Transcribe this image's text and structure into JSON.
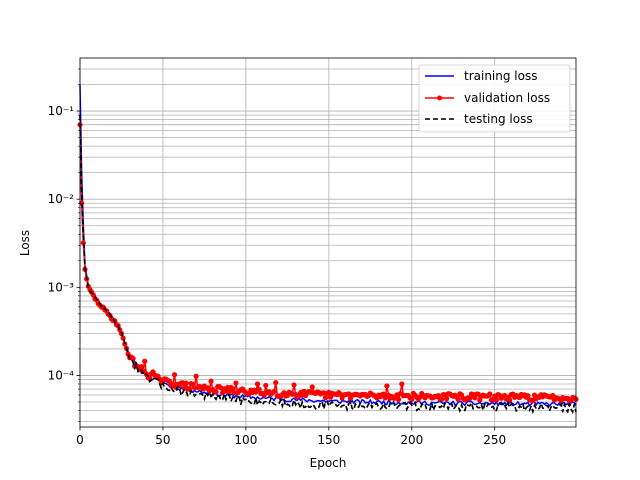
{
  "chart_data": {
    "type": "line",
    "title": "",
    "xlabel": "Epoch",
    "ylabel": "Loss",
    "xlim": [
      0,
      299
    ],
    "ylim": [
      2.6e-05,
      0.4
    ],
    "yscale": "log",
    "grid": true,
    "grid_minor_y": true,
    "legend_position": "upper-right",
    "x_ticks": [
      0,
      50,
      100,
      150,
      200,
      250
    ],
    "x_tick_labels": [
      "0",
      "50",
      "100",
      "150",
      "200",
      "250"
    ],
    "y_ticks": [
      0.0001,
      0.001,
      0.01,
      0.1
    ],
    "y_tick_labels": [
      "10⁻⁴",
      "10⁻³",
      "10⁻²",
      "10⁻¹"
    ],
    "series": [
      {
        "name": "training loss",
        "color": "#0000ff",
        "style": "solid",
        "marker": "none",
        "anchors": [
          [
            0,
            0.2
          ],
          [
            1,
            0.02
          ],
          [
            2,
            0.005
          ],
          [
            3,
            0.0018
          ],
          [
            5,
            0.00105
          ],
          [
            10,
            0.00075
          ],
          [
            15,
            0.00058
          ],
          [
            20,
            0.00045
          ],
          [
            23,
            0.00037
          ],
          [
            27,
            0.00024
          ],
          [
            30,
            0.00017
          ],
          [
            35,
            0.00012
          ],
          [
            40,
            0.0001
          ],
          [
            50,
            8.2e-05
          ],
          [
            60,
            7.2e-05
          ],
          [
            80,
            6.2e-05
          ],
          [
            100,
            5.7e-05
          ],
          [
            120,
            5.4e-05
          ],
          [
            150,
            5.1e-05
          ],
          [
            200,
            4.9e-05
          ],
          [
            250,
            4.8e-05
          ],
          [
            299,
            4.7e-05
          ]
        ],
        "noise": 0.04,
        "seed": 11
      },
      {
        "name": "validation loss",
        "color": "#ff0000",
        "style": "solid",
        "marker": "dot",
        "anchors": [
          [
            0,
            0.07
          ],
          [
            1,
            0.009
          ],
          [
            2,
            0.0032
          ],
          [
            3,
            0.0016
          ],
          [
            5,
            0.001
          ],
          [
            10,
            0.0007
          ],
          [
            15,
            0.00055
          ],
          [
            20,
            0.00043
          ],
          [
            23,
            0.00037
          ],
          [
            27,
            0.00023
          ],
          [
            30,
            0.00016
          ],
          [
            35,
            0.000125
          ],
          [
            40,
            0.000105
          ],
          [
            50,
            8.6e-05
          ],
          [
            60,
            7.8e-05
          ],
          [
            80,
            7e-05
          ],
          [
            100,
            6.6e-05
          ],
          [
            120,
            6.3e-05
          ],
          [
            150,
            6e-05
          ],
          [
            200,
            5.8e-05
          ],
          [
            250,
            5.7e-05
          ],
          [
            299,
            5.6e-05
          ]
        ],
        "noise": 0.06,
        "seed": 29,
        "spikes": [
          [
            39,
            0.000145
          ],
          [
            44,
            0.00011
          ],
          [
            57,
            0.000102
          ],
          [
            70,
            9.8e-05
          ],
          [
            79,
            8.6e-05
          ],
          [
            94,
            8.2e-05
          ],
          [
            107,
            8e-05
          ],
          [
            112,
            7.7e-05
          ],
          [
            118,
            8.3e-05
          ],
          [
            129,
            7.8e-05
          ],
          [
            140,
            7.4e-05
          ],
          [
            185,
            7.6e-05
          ],
          [
            194,
            8e-05
          ]
        ]
      },
      {
        "name": "testing loss",
        "color": "#000000",
        "style": "dashed",
        "marker": "none",
        "anchors": [
          [
            0,
            0.09
          ],
          [
            1,
            0.012
          ],
          [
            2,
            0.004
          ],
          [
            3,
            0.0017
          ],
          [
            5,
            0.001
          ],
          [
            10,
            0.00072
          ],
          [
            15,
            0.00056
          ],
          [
            20,
            0.00044
          ],
          [
            23,
            0.00037
          ],
          [
            27,
            0.00023
          ],
          [
            30,
            0.00016
          ],
          [
            35,
            0.000115
          ],
          [
            40,
            9.5e-05
          ],
          [
            50,
            7.7e-05
          ],
          [
            60,
            6.7e-05
          ],
          [
            80,
            5.7e-05
          ],
          [
            100,
            5.2e-05
          ],
          [
            120,
            4.9e-05
          ],
          [
            150,
            4.6e-05
          ],
          [
            200,
            4.5e-05
          ],
          [
            250,
            4.4e-05
          ],
          [
            299,
            4.3e-05
          ]
        ],
        "noise": 0.08,
        "seed": 47
      }
    ]
  }
}
